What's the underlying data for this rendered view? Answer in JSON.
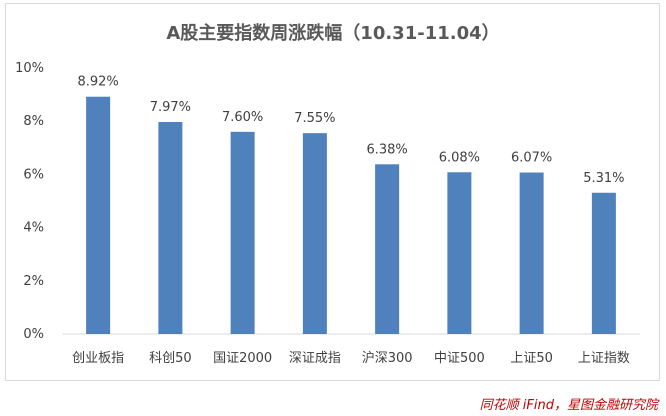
{
  "chart_data": {
    "type": "bar",
    "title": "A股主要指数周涨跌幅（10.31-11.04）",
    "categories": [
      "创业板指",
      "科创50",
      "国证2000",
      "深证成指",
      "沪深300",
      "中证500",
      "上证50",
      "上证指数"
    ],
    "values": [
      8.92,
      7.97,
      7.6,
      7.55,
      6.38,
      6.08,
      6.07,
      5.31
    ],
    "data_labels": [
      "8.92%",
      "7.97%",
      "7.60%",
      "7.55%",
      "6.38%",
      "6.08%",
      "6.07%",
      "5.31%"
    ],
    "y_ticks": [
      "0%",
      "2%",
      "4%",
      "6%",
      "8%",
      "10%"
    ],
    "y_tick_values": [
      0,
      2,
      4,
      6,
      8,
      10
    ],
    "ylim": [
      0,
      10
    ],
    "xlabel": "",
    "ylabel": "",
    "grid": false,
    "legend": "none",
    "bar_color": "#4f81bd"
  },
  "source_note": "同花顺 iFind，星图金融研究院"
}
